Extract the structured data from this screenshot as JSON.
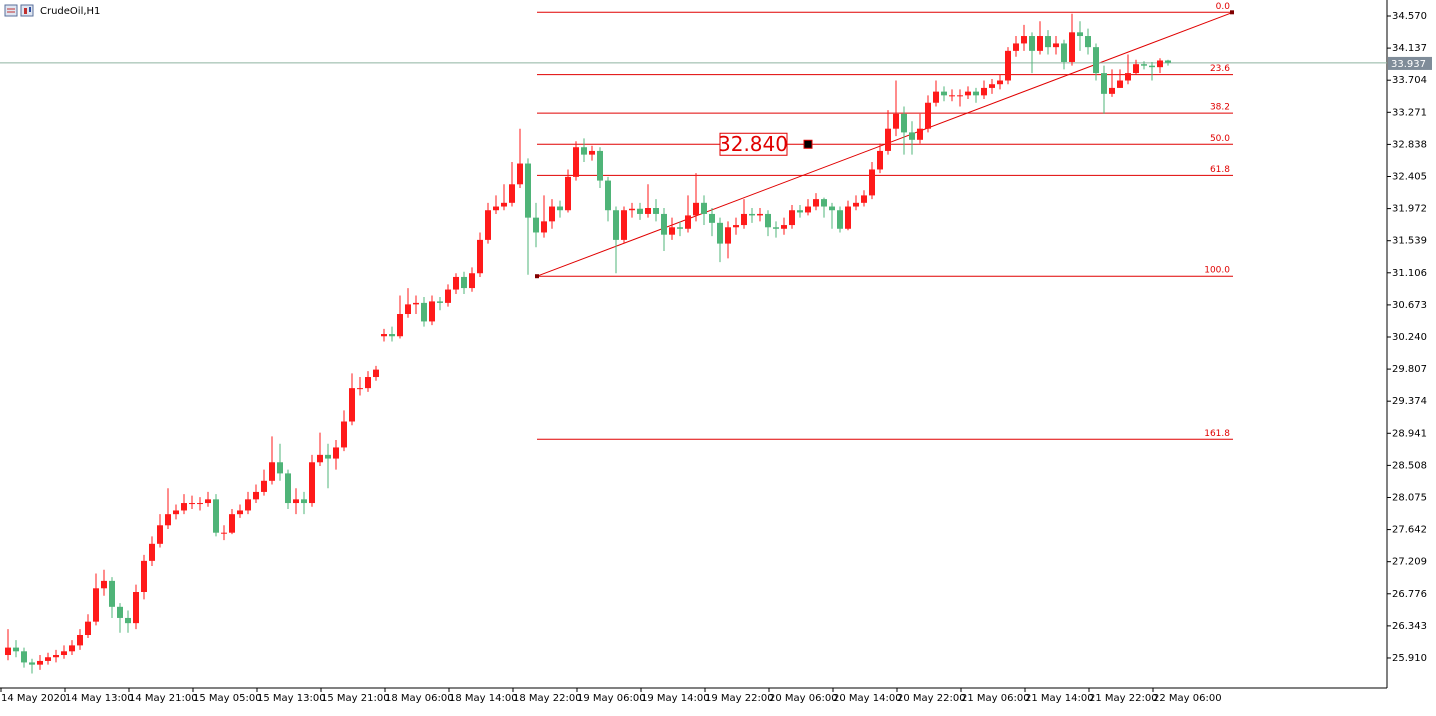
{
  "chart_data": {
    "type": "candlestick",
    "title": "CrudeOil,H1",
    "up_color": "#ff1a1a",
    "down_color": "#4fb478",
    "categories": [
      "14 May 2020",
      null,
      null,
      null,
      null,
      null,
      null,
      null,
      "14 May 13:00",
      null,
      null,
      null,
      null,
      null,
      null,
      null,
      "14 May 21:00",
      null,
      null,
      null,
      null,
      null,
      null,
      null,
      "15 May 05:00",
      null,
      null,
      null,
      null,
      null,
      null,
      null,
      "15 May 13:00",
      null,
      null,
      null,
      null,
      null,
      null,
      null,
      "15 May 21:00",
      null,
      null,
      null,
      null,
      null,
      null,
      null,
      "18 May 06:00",
      null,
      null,
      null,
      null,
      null,
      null,
      null,
      "18 May 14:00",
      null,
      null,
      null,
      null,
      null,
      null,
      null,
      "18 May 22:00",
      null,
      null,
      null,
      null,
      null,
      null,
      null,
      "19 May 06:00",
      null,
      null,
      null,
      null,
      null,
      null,
      null,
      "19 May 14:00",
      null,
      null,
      null,
      null,
      null,
      null,
      null,
      "19 May 22:00",
      null,
      null,
      null,
      null,
      null,
      null,
      null,
      "20 May 06:00",
      null,
      null,
      null,
      null,
      null,
      null,
      null,
      "20 May 14:00",
      null,
      null,
      null,
      null,
      null,
      null,
      null,
      "20 May 22:00",
      null,
      null,
      null,
      null,
      null,
      null,
      null,
      "21 May 06:00",
      null,
      null,
      null,
      null,
      null,
      null,
      null,
      "21 May 14:00",
      null,
      null,
      null,
      null,
      null,
      null,
      null,
      "21 May 22:00",
      null,
      null,
      null,
      null,
      null,
      null,
      null,
      "22 May 06:00",
      null
    ],
    "open": [
      25.95,
      26.05,
      26.0,
      25.85,
      25.82,
      25.87,
      25.92,
      25.95,
      26.0,
      26.08,
      26.22,
      26.4,
      26.85,
      26.95,
      26.6,
      26.45,
      26.38,
      26.8,
      27.22,
      27.45,
      27.7,
      27.85,
      27.9,
      28.0,
      28.0,
      28.0,
      28.05,
      27.6,
      27.6,
      27.85,
      27.9,
      28.05,
      28.15,
      28.3,
      28.55,
      28.4,
      28.0,
      28.05,
      28.0,
      28.55,
      28.65,
      28.6,
      28.75,
      29.1,
      29.55,
      29.55,
      29.7,
      30.25,
      30.28,
      30.25,
      30.55,
      30.68,
      30.7,
      30.45,
      30.72,
      30.7,
      30.88,
      31.05,
      30.9,
      31.1,
      31.55,
      31.95,
      32.0,
      32.05,
      32.3,
      32.58,
      31.85,
      31.65,
      31.8,
      32.0,
      31.95,
      32.4,
      32.8,
      32.7,
      32.75,
      32.35,
      31.95,
      31.55,
      31.95,
      31.97,
      31.9,
      31.98,
      31.9,
      31.62,
      31.72,
      31.7,
      31.88,
      32.05,
      31.9,
      31.78,
      31.5,
      31.72,
      31.75,
      31.9,
      31.88,
      31.9,
      31.72,
      31.7,
      31.75,
      31.95,
      31.92,
      32.0,
      32.1,
      32.0,
      31.95,
      31.7,
      32.0,
      32.05,
      32.15,
      32.5,
      32.75,
      33.05,
      33.25,
      33.0,
      32.9,
      33.05,
      33.4,
      33.55,
      33.5,
      33.5,
      33.5,
      33.55,
      33.5,
      33.6,
      33.65,
      33.7,
      34.1,
      34.2,
      34.3,
      34.1,
      34.3,
      34.15,
      34.2,
      33.95,
      34.35,
      34.3,
      34.15,
      33.8,
      33.52,
      33.6,
      33.7,
      33.8,
      33.92,
      33.9,
      33.88,
      33.97
    ],
    "high": [
      26.3,
      26.15,
      26.05,
      25.9,
      25.95,
      25.98,
      26.02,
      26.08,
      26.15,
      26.3,
      26.5,
      27.05,
      27.1,
      27.0,
      26.65,
      26.55,
      26.9,
      27.3,
      27.55,
      27.85,
      28.2,
      27.98,
      28.12,
      28.1,
      28.08,
      28.15,
      28.12,
      27.7,
      27.92,
      27.98,
      28.15,
      28.25,
      28.45,
      28.9,
      28.8,
      28.45,
      28.2,
      28.15,
      28.65,
      28.95,
      28.8,
      28.85,
      29.25,
      29.75,
      29.7,
      29.78,
      29.85,
      30.35,
      30.38,
      30.8,
      30.9,
      30.8,
      30.78,
      30.8,
      30.78,
      30.95,
      31.1,
      31.12,
      31.18,
      31.65,
      32.05,
      32.15,
      32.3,
      32.6,
      33.05,
      32.65,
      32.05,
      32.15,
      32.1,
      32.08,
      32.5,
      32.88,
      32.92,
      32.82,
      32.8,
      32.4,
      32.0,
      32.0,
      32.05,
      32.05,
      32.3,
      32.1,
      31.98,
      31.85,
      31.8,
      32.15,
      32.45,
      32.15,
      31.98,
      31.85,
      31.8,
      31.85,
      32.1,
      31.98,
      31.98,
      31.95,
      31.8,
      31.85,
      32.02,
      32.02,
      32.1,
      32.18,
      32.12,
      32.05,
      32.0,
      32.08,
      32.15,
      32.22,
      32.6,
      32.85,
      33.3,
      33.7,
      33.35,
      33.15,
      33.25,
      33.5,
      33.7,
      33.62,
      33.58,
      33.58,
      33.62,
      33.6,
      33.7,
      33.72,
      33.78,
      34.15,
      34.3,
      34.45,
      34.35,
      34.5,
      34.38,
      34.3,
      34.25,
      34.6,
      34.5,
      34.4,
      34.2,
      33.9,
      33.85,
      33.85,
      34.05,
      33.98,
      33.96,
      33.95,
      34.0,
      33.98
    ],
    "low": [
      25.88,
      25.92,
      25.78,
      25.7,
      25.75,
      25.82,
      25.85,
      25.9,
      25.95,
      26.02,
      26.18,
      26.35,
      26.75,
      26.45,
      26.25,
      26.25,
      26.3,
      26.7,
      27.15,
      27.4,
      27.65,
      27.78,
      27.85,
      27.92,
      27.9,
      27.95,
      27.55,
      27.5,
      27.58,
      27.8,
      27.85,
      28.0,
      28.1,
      28.25,
      28.3,
      27.92,
      27.85,
      27.85,
      27.95,
      28.5,
      28.2,
      28.45,
      28.7,
      29.05,
      29.45,
      29.5,
      29.65,
      30.18,
      30.18,
      30.22,
      30.5,
      30.55,
      30.38,
      30.4,
      30.6,
      30.65,
      30.82,
      30.82,
      30.85,
      31.05,
      31.5,
      31.9,
      31.95,
      32.0,
      32.25,
      31.08,
      31.45,
      31.58,
      31.7,
      31.85,
      31.92,
      32.35,
      32.6,
      32.62,
      32.25,
      31.8,
      31.1,
      31.5,
      31.85,
      31.82,
      31.85,
      31.8,
      31.4,
      31.55,
      31.6,
      31.65,
      31.8,
      31.75,
      31.6,
      31.25,
      31.3,
      31.62,
      31.7,
      31.78,
      31.8,
      31.6,
      31.58,
      31.62,
      31.7,
      31.85,
      31.88,
      31.95,
      31.85,
      31.7,
      31.65,
      31.68,
      31.95,
      32.0,
      32.1,
      32.45,
      32.7,
      32.95,
      32.7,
      32.7,
      32.85,
      33.0,
      33.35,
      33.42,
      33.42,
      33.35,
      33.45,
      33.4,
      33.45,
      33.52,
      33.58,
      33.65,
      34.02,
      34.1,
      33.8,
      34.05,
      34.05,
      34.05,
      33.85,
      33.9,
      34.1,
      34.05,
      33.7,
      33.25,
      33.48,
      33.6,
      33.65,
      33.78,
      33.85,
      33.7,
      33.8,
      33.9
    ],
    "close": [
      26.05,
      26.0,
      25.85,
      25.82,
      25.87,
      25.92,
      25.95,
      26.0,
      26.08,
      26.22,
      26.4,
      26.85,
      26.95,
      26.6,
      26.45,
      26.38,
      26.8,
      27.22,
      27.45,
      27.7,
      27.85,
      27.9,
      28.0,
      28.0,
      28.0,
      28.05,
      27.6,
      27.6,
      27.85,
      27.9,
      28.05,
      28.15,
      28.3,
      28.55,
      28.4,
      28.0,
      28.05,
      28.0,
      28.55,
      28.65,
      28.6,
      28.75,
      29.1,
      29.55,
      29.55,
      29.7,
      29.8,
      30.28,
      30.25,
      30.55,
      30.68,
      30.7,
      30.45,
      30.72,
      30.7,
      30.88,
      31.05,
      30.9,
      31.1,
      31.55,
      31.95,
      32.0,
      32.05,
      32.3,
      32.58,
      31.85,
      31.65,
      31.8,
      32.0,
      31.95,
      32.4,
      32.8,
      32.7,
      32.75,
      32.35,
      31.95,
      31.55,
      31.95,
      31.97,
      31.9,
      31.98,
      31.9,
      31.62,
      31.72,
      31.7,
      31.88,
      32.05,
      31.9,
      31.78,
      31.5,
      31.72,
      31.75,
      31.9,
      31.88,
      31.9,
      31.72,
      31.7,
      31.75,
      31.95,
      31.92,
      32.0,
      32.1,
      32.0,
      31.95,
      31.7,
      32.0,
      32.05,
      32.15,
      32.5,
      32.75,
      33.05,
      33.25,
      33.0,
      32.9,
      33.05,
      33.4,
      33.55,
      33.5,
      33.5,
      33.5,
      33.55,
      33.5,
      33.6,
      33.65,
      33.7,
      34.1,
      34.2,
      34.3,
      34.1,
      34.3,
      34.15,
      34.2,
      33.95,
      34.35,
      34.3,
      34.15,
      33.8,
      33.52,
      33.6,
      33.7,
      33.8,
      33.92,
      33.9,
      33.88,
      33.97,
      33.94
    ],
    "ylim": [
      25.505,
      34.786
    ],
    "yticks": [
      {
        "value": 34.57,
        "label": "34.570"
      },
      34.137,
      33.704,
      33.271,
      32.838,
      32.405,
      31.972,
      31.539,
      31.106,
      30.673,
      {
        "value": 30.24,
        "label": "30.240"
      },
      29.807,
      29.374,
      28.941,
      28.508,
      28.075,
      27.642,
      27.209,
      26.776,
      26.343,
      {
        "value": 25.91,
        "label": "25.910"
      }
    ],
    "fibonacci": {
      "color": "#e00000",
      "levels": [
        {
          "label": "0.0",
          "value": 34.62
        },
        {
          "label": "23.6",
          "value": 33.78
        },
        {
          "label": "38.2",
          "value": 33.26
        },
        {
          "label": "50.0",
          "value": 32.84
        },
        {
          "label": "61.8",
          "value": 32.42
        },
        {
          "label": "100.0",
          "value": 31.06
        },
        {
          "label": "161.8",
          "value": 28.86
        }
      ]
    },
    "price_annotation": {
      "label": "32.840",
      "value": 32.84
    },
    "current_price": {
      "label": "33.937",
      "value": 33.937,
      "color": "#8fb3a0"
    }
  }
}
